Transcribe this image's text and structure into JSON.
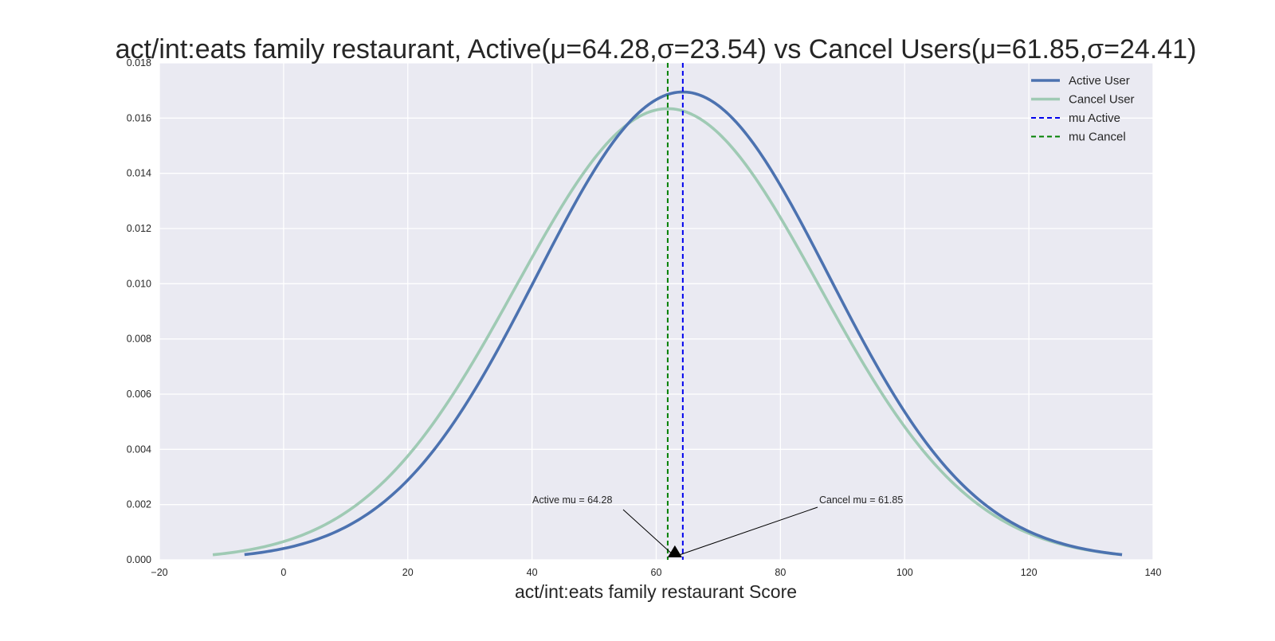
{
  "chart_data": {
    "type": "line",
    "title": "act/int:eats family restaurant, Active(μ=64.28,σ=23.54) vs Cancel Users(μ=61.85,σ=24.41)",
    "xlabel": "act/int:eats family restaurant Score",
    "ylabel": "",
    "xlim": [
      -20,
      140
    ],
    "ylim": [
      0,
      0.018
    ],
    "x_ticks": [
      "−20",
      "0",
      "20",
      "40",
      "60",
      "80",
      "100",
      "120",
      "140"
    ],
    "y_ticks": [
      "0.000",
      "0.002",
      "0.004",
      "0.006",
      "0.008",
      "0.010",
      "0.012",
      "0.014",
      "0.016",
      "0.018"
    ],
    "grid": true,
    "legend_position": "top-right",
    "series": [
      {
        "name": "Active User",
        "kind": "normal-pdf",
        "mu": 64.28,
        "sigma": 23.54,
        "x_range": [
          -6.3,
          135
        ],
        "color": "#4c72b0"
      },
      {
        "name": "Cancel User",
        "kind": "normal-pdf",
        "mu": 61.85,
        "sigma": 24.41,
        "x_range": [
          -11.4,
          135
        ],
        "color": "#9fcab4"
      }
    ],
    "vlines": [
      {
        "name": "mu Active",
        "x": 64.28,
        "color": "#0000ee"
      },
      {
        "name": "mu Cancel",
        "x": 61.85,
        "color": "#008000"
      }
    ],
    "annotations": [
      {
        "text": "Active mu = 64.28",
        "x": 64.28,
        "y": 0
      },
      {
        "text": "Cancel mu = 61.85",
        "x": 61.85,
        "y": 0
      }
    ]
  }
}
